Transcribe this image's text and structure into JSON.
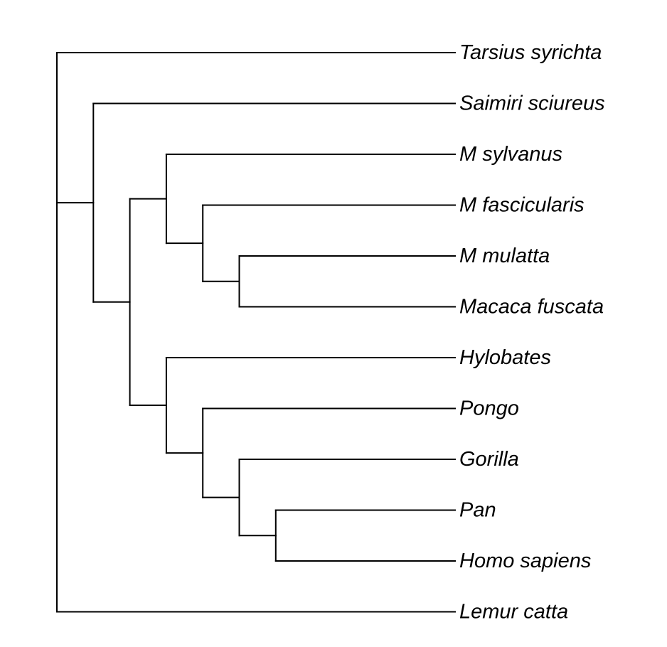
{
  "tree": {
    "type": "cladogram",
    "line_color": "#000000",
    "label_color": "#000000",
    "leaves": [
      "Tarsius syrichta",
      "Saimiri sciureus",
      "M sylvanus",
      "M fascicularis",
      "M mulatta",
      "Macaca fuscata",
      "Hylobates",
      "Pongo",
      "Gorilla",
      "Pan",
      "Homo sapiens",
      "Lemur catta"
    ],
    "newick": "(Tarsius syrichta,(Saimiri sciureus,((M sylvanus,(M fascicularis,(M mulatta,Macaca fuscata))),(Hylobates,(Pongo,(Gorilla,(Pan,Homo sapiens)))))),Lemur catta)"
  }
}
